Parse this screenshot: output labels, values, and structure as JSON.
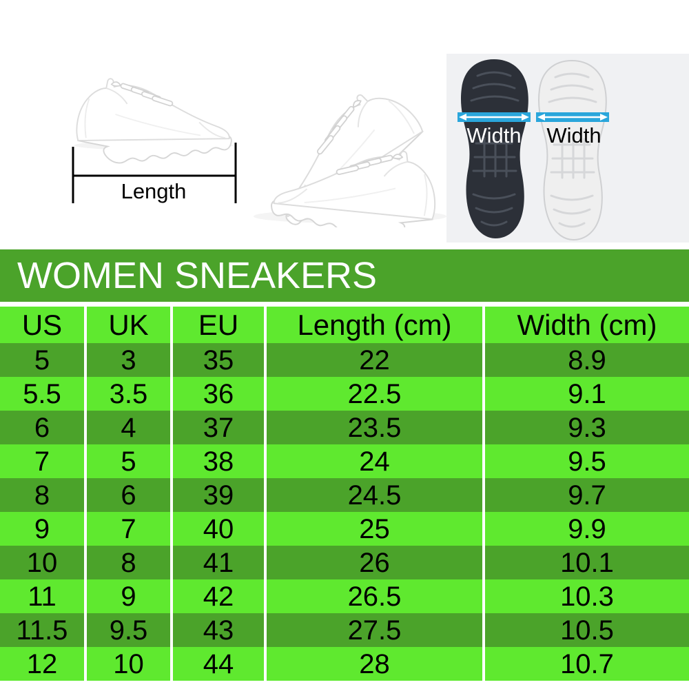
{
  "title": "WOMEN SNEAKERS",
  "figures": {
    "length_fig": {
      "label": "Length"
    },
    "pair_fig": {
      "description": "pair of white sneakers"
    },
    "width_fig": {
      "label_dark_sole": "Width",
      "label_light_sole": "Width"
    }
  },
  "chart_data": {
    "type": "table",
    "title": "WOMEN SNEAKERS",
    "columns": [
      "US",
      "UK",
      "EU",
      "Length (cm)",
      "Width (cm)"
    ],
    "rows": [
      [
        "5",
        "3",
        "35",
        "22",
        "8.9"
      ],
      [
        "5.5",
        "3.5",
        "36",
        "22.5",
        "9.1"
      ],
      [
        "6",
        "4",
        "37",
        "23.5",
        "9.3"
      ],
      [
        "7",
        "5",
        "38",
        "24",
        "9.5"
      ],
      [
        "8",
        "6",
        "39",
        "24.5",
        "9.7"
      ],
      [
        "9",
        "7",
        "40",
        "25",
        "9.9"
      ],
      [
        "10",
        "8",
        "41",
        "26",
        "10.1"
      ],
      [
        "11",
        "9",
        "42",
        "26.5",
        "10.3"
      ],
      [
        "11.5",
        "9.5",
        "43",
        "27.5",
        "10.5"
      ],
      [
        "12",
        "10",
        "44",
        "28",
        "10.7"
      ]
    ]
  },
  "colors": {
    "band_green": "#4ba32a",
    "row_dark_green": "#4ba32a",
    "row_light_green": "#5fe92f",
    "arrow_blue": "#2aa6db",
    "sole_black": "#2c3038",
    "sole_white": "#efefef"
  }
}
